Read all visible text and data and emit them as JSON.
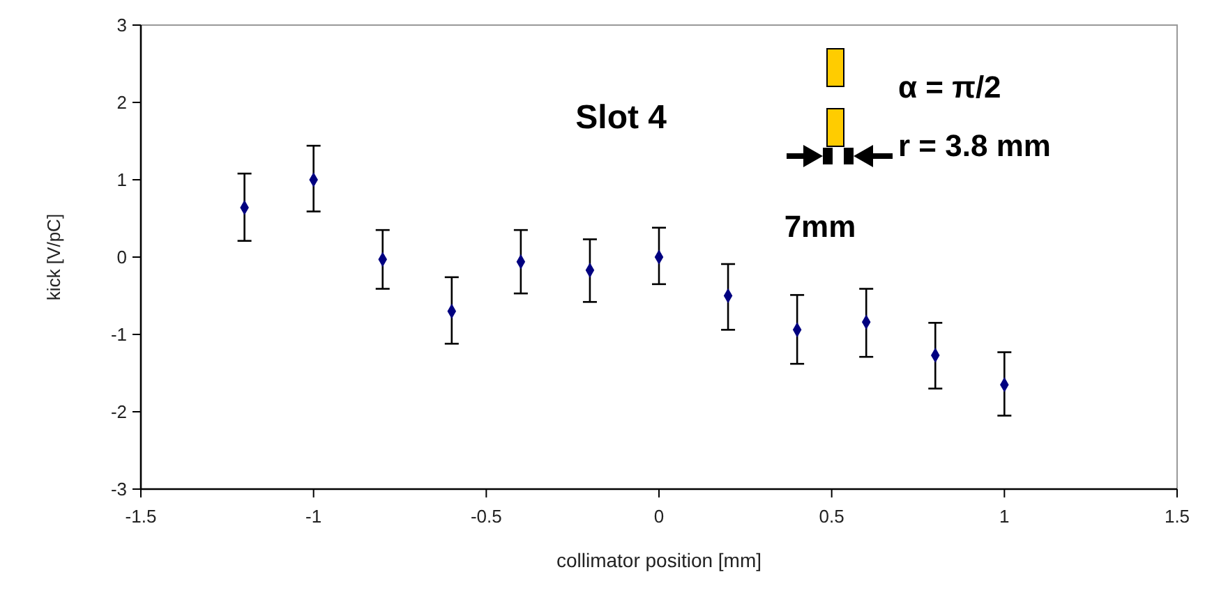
{
  "chart_data": {
    "type": "scatter",
    "xlabel": "collimator position [mm]",
    "ylabel": "kick [V/pC]",
    "x": [
      -1.2,
      -1,
      -0.8,
      -0.6,
      -0.4,
      -0.2,
      0,
      0.2,
      0.4,
      0.6,
      0.8,
      1
    ],
    "series": [
      {
        "color": "#000080",
        "values": [
          0.64,
          1.0,
          -0.03,
          -0.7,
          -0.06,
          -0.17,
          0.0,
          -0.5,
          -0.94,
          -0.84,
          -1.27,
          -1.65
        ],
        "errors": [
          [
            0.21,
            1.08
          ],
          [
            0.59,
            1.44
          ],
          [
            -0.41,
            0.35
          ],
          [
            -1.12,
            -0.26
          ],
          [
            -0.47,
            0.35
          ],
          [
            -0.58,
            0.23
          ],
          [
            -0.35,
            0.38
          ],
          [
            -0.94,
            -0.09
          ],
          [
            -1.38,
            -0.49
          ],
          [
            -1.29,
            -0.41
          ],
          [
            -1.7,
            -0.85
          ],
          [
            -2.05,
            -1.23
          ]
        ]
      }
    ],
    "xlim": [
      -1.5,
      1.5
    ],
    "xticks": [
      -1.5,
      -1,
      -0.5,
      0,
      0.5,
      1,
      1.5
    ],
    "ylim": [
      -3,
      3
    ],
    "yticks": [
      -3,
      -2,
      -1,
      0,
      1,
      2,
      3
    ],
    "marker": "diamond",
    "grid": false,
    "annotations": [
      "Slot 4",
      "α = π/2",
      "r = 3.8 mm",
      "7mm"
    ]
  }
}
